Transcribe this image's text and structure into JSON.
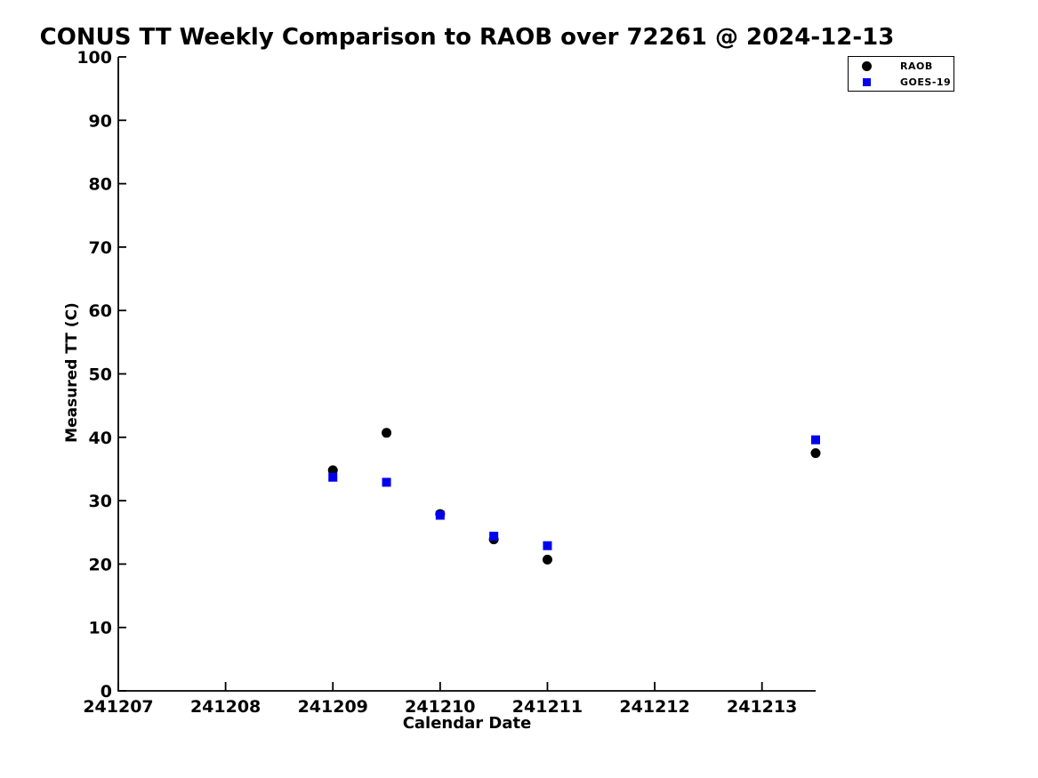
{
  "title": "CONUS TT Weekly Comparison to RAOB over 72261 @ 2024-12-13",
  "colors": {
    "raob": "#000000",
    "goes19": "#0000EE",
    "axis": "#000000",
    "background": "#ffffff"
  },
  "chart_data": {
    "type": "scatter",
    "title": "CONUS TT Weekly Comparison to RAOB over 72261 @ 2024-12-13",
    "xlabel": "Calendar Date",
    "ylabel": "Measured TT (C)",
    "xlim": [
      241207,
      241213.5
    ],
    "ylim": [
      0,
      100
    ],
    "x_ticks": [
      241207,
      241208,
      241209,
      241210,
      241211,
      241212,
      241213
    ],
    "x_tick_labels": [
      "241207",
      "241208",
      "241209",
      "241210",
      "241211",
      "241212",
      "241213"
    ],
    "y_ticks": [
      0,
      10,
      20,
      30,
      40,
      50,
      60,
      70,
      80,
      90,
      100
    ],
    "y_tick_labels": [
      "0",
      "10",
      "20",
      "30",
      "40",
      "50",
      "60",
      "70",
      "80",
      "90",
      "100"
    ],
    "grid": false,
    "legend_position": "top-right",
    "series": [
      {
        "name": "RAOB",
        "marker": "circle",
        "color": "#000000",
        "points": [
          [
            241209.0,
            34.8
          ],
          [
            241209.5,
            40.7
          ],
          [
            241210.0,
            27.9
          ],
          [
            241210.5,
            23.9
          ],
          [
            241211.0,
            20.7
          ],
          [
            241213.5,
            37.5
          ]
        ]
      },
      {
        "name": "GOES-19",
        "marker": "square",
        "color": "#0000EE",
        "points": [
          [
            241209.0,
            33.7
          ],
          [
            241209.5,
            32.9
          ],
          [
            241210.0,
            27.7
          ],
          [
            241210.5,
            24.4
          ],
          [
            241211.0,
            22.9
          ],
          [
            241213.5,
            39.6
          ]
        ]
      }
    ]
  }
}
